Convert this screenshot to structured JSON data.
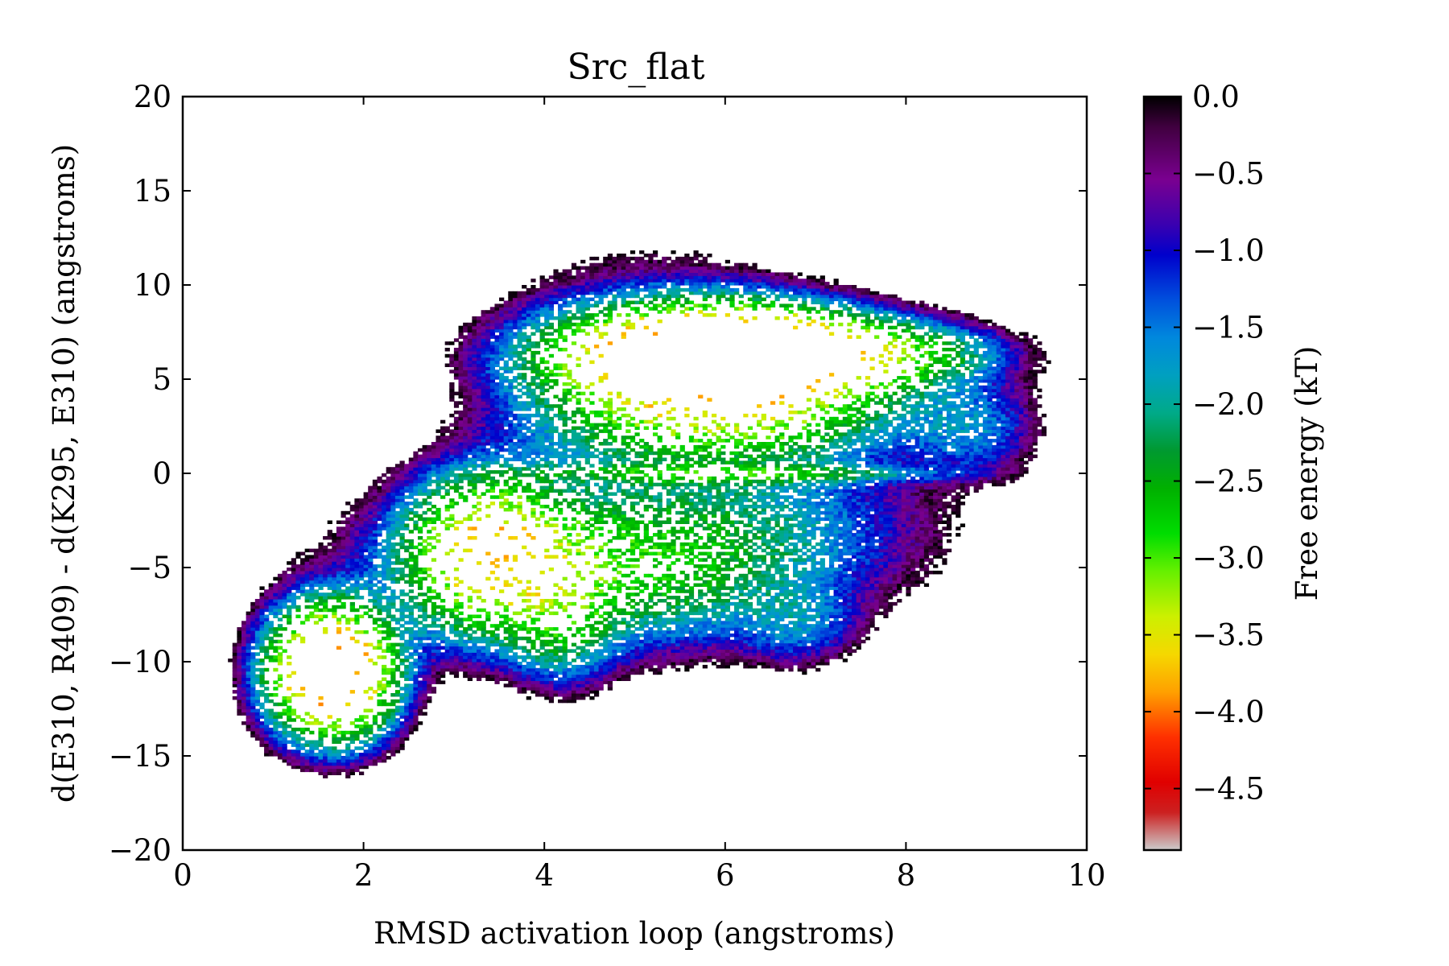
{
  "chart_data": {
    "type": "heatmap",
    "title": "Src_flat",
    "xlabel": "RMSD activation loop (angstroms)",
    "ylabel": "d(E310, R409) - d(K295, E310) (angstroms)",
    "xlim": [
      0,
      10
    ],
    "ylim": [
      -20,
      20
    ],
    "x_ticks": [
      0,
      2,
      4,
      6,
      8,
      10
    ],
    "x_tick_labels": [
      "0",
      "2",
      "4",
      "6",
      "8",
      "10"
    ],
    "y_ticks": [
      -20,
      -15,
      -10,
      -5,
      0,
      5,
      10,
      15,
      20
    ],
    "y_tick_labels": [
      "−20",
      "−15",
      "−10",
      "−5",
      "0",
      "5",
      "10",
      "15",
      "20"
    ],
    "colorbar": {
      "label": "Free energy (kT)",
      "range": [
        -4.9,
        0.0
      ],
      "ticks": [
        0.0,
        -0.5,
        -1.0,
        -1.5,
        -2.0,
        -2.5,
        -3.0,
        -3.5,
        -4.0,
        -4.5
      ],
      "tick_labels": [
        "0.0",
        "−0.5",
        "−1.0",
        "−1.5",
        "−2.0",
        "−2.5",
        "−3.0",
        "−3.5",
        "−4.0",
        "−4.5"
      ],
      "colormap": "nipy_spectral (reversed)"
    },
    "grid": false,
    "basins": [
      {
        "x": 1.65,
        "y": -10.5,
        "sx": 0.38,
        "sy": 1.9,
        "min_free_energy": -4.3
      },
      {
        "x": 3.4,
        "y": -4.2,
        "sx": 0.5,
        "sy": 2.3,
        "min_free_energy": -3.6
      },
      {
        "x": 4.6,
        "y": -4.8,
        "sx": 1.3,
        "sy": 2.4,
        "min_free_energy": -2.8
      },
      {
        "x": 4.2,
        "y": -7.5,
        "sx": 0.35,
        "sy": 2.0,
        "min_free_energy": -2.4
      },
      {
        "x": 6.0,
        "y": 6.3,
        "sx": 0.9,
        "sy": 1.3,
        "min_free_energy": -4.7
      },
      {
        "x": 6.1,
        "y": 3.8,
        "sx": 1.0,
        "sy": 1.7,
        "min_free_energy": -3.3
      },
      {
        "x": 7.6,
        "y": 6.3,
        "sx": 0.8,
        "sy": 1.0,
        "min_free_energy": -2.8
      },
      {
        "x": 5.3,
        "y": 5.0,
        "sx": 1.0,
        "sy": 3.0,
        "min_free_energy": -2.4
      },
      {
        "x": 8.7,
        "y": 2.5,
        "sx": 0.45,
        "sy": 1.6,
        "min_free_energy": -1.6
      },
      {
        "x": 6.0,
        "y": 0.0,
        "sx": 1.2,
        "sy": 0.3,
        "min_free_energy": -2.6
      },
      {
        "x": 6.3,
        "y": -2.5,
        "sx": 1.2,
        "sy": 2.5,
        "min_free_energy": -1.5
      },
      {
        "x": 6.8,
        "y": -8.0,
        "sx": 0.4,
        "sy": 1.3,
        "min_free_energy": -1.4
      }
    ]
  }
}
